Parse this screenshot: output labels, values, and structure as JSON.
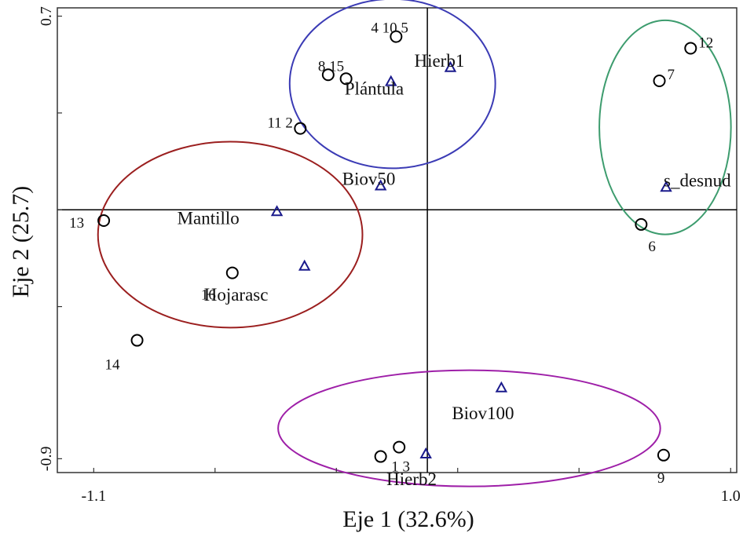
{
  "chart_data": {
    "type": "scatter",
    "xlabel": "Eje 1 (32.6%)",
    "ylabel": "Eje 2 (25.7)",
    "xlim": [
      -1.22,
      1.02
    ],
    "ylim": [
      -0.95,
      0.73
    ],
    "x_tick_labels": [
      {
        "value": -1.1,
        "label": "-1.1"
      },
      {
        "value": 1.0,
        "label": "1.0"
      }
    ],
    "y_tick_labels": [
      {
        "value": 0.7,
        "label": "0.7"
      },
      {
        "value": -0.9,
        "label": "-0.9"
      }
    ],
    "series": [
      {
        "marker": "circle",
        "color": "#000000",
        "points": [
          {
            "label": "4 10 5",
            "x": -0.103,
            "y": 0.626
          },
          {
            "label": "8 15",
            "x": -0.327,
            "y": 0.488
          },
          {
            "label": "",
            "x": -0.268,
            "y": 0.474
          },
          {
            "label": "11 2",
            "x": -0.419,
            "y": 0.294
          },
          {
            "label": "13",
            "x": -1.067,
            "y": -0.039
          },
          {
            "label": "16",
            "x": -0.643,
            "y": -0.228
          },
          {
            "label": "14",
            "x": -0.957,
            "y": -0.472
          },
          {
            "label": "12",
            "x": 0.868,
            "y": 0.584
          },
          {
            "label": "7",
            "x": 0.765,
            "y": 0.466
          },
          {
            "label": "6",
            "x": 0.705,
            "y": -0.053
          },
          {
            "label": "1 3",
            "x": -0.093,
            "y": -0.858
          },
          {
            "label": "",
            "x": -0.154,
            "y": -0.892
          },
          {
            "label": "9",
            "x": 0.779,
            "y": -0.887
          }
        ]
      },
      {
        "marker": "triangle",
        "color": "#1a1a8c",
        "points": [
          {
            "label": "Hierb1",
            "x": 0.076,
            "y": 0.515
          },
          {
            "label": "Plántula",
            "x": -0.12,
            "y": 0.464
          },
          {
            "label": "Biov50",
            "x": -0.154,
            "y": 0.087
          },
          {
            "label": "Mantillo",
            "x": -0.496,
            "y": -0.006
          },
          {
            "label": "Hojarasc",
            "x": -0.405,
            "y": -0.203
          },
          {
            "label": "s_desnud",
            "x": 0.787,
            "y": 0.082
          },
          {
            "label": "Biov100",
            "x": 0.244,
            "y": -0.643
          },
          {
            "label": "Hierb2",
            "x": -0.005,
            "y": -0.882
          }
        ]
      }
    ],
    "groups": [
      {
        "color": "#9b1f1f",
        "center": [
          -0.65,
          -0.09
        ],
        "radii": [
          0.436,
          0.336
        ]
      },
      {
        "color": "#3b3bb5",
        "center": [
          -0.115,
          0.456
        ],
        "radii": [
          0.339,
          0.306
        ]
      },
      {
        "color": "#3d9c6e",
        "center": [
          0.784,
          0.298
        ],
        "radii": [
          0.217,
          0.387
        ]
      },
      {
        "color": "#9e1fa8",
        "center": [
          0.138,
          -0.79
        ],
        "radii": [
          0.63,
          0.21
        ]
      }
    ]
  }
}
